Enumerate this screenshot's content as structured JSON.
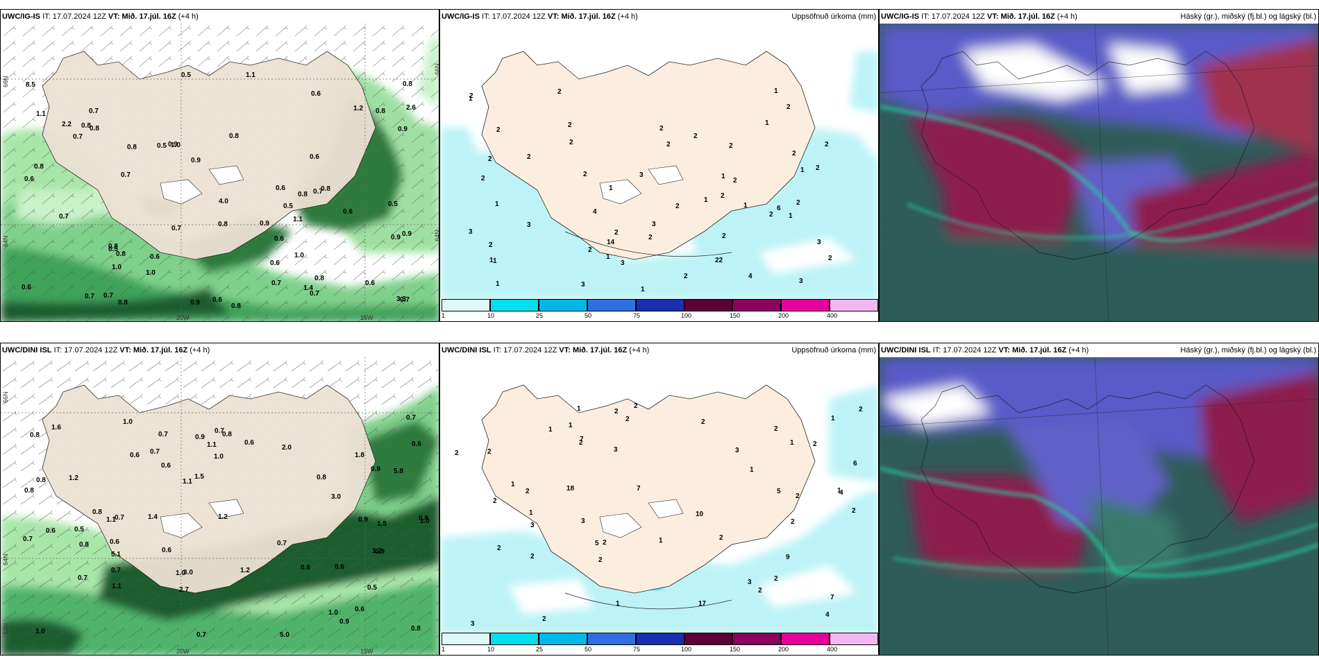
{
  "rows": [
    {
      "model": "UWC/IG-IS",
      "it_label": "IT:",
      "it_value": "17.07.2024 12Z",
      "vt_label": "VT:",
      "vt_value": "Mið. 17.júl. 16Z",
      "lead": "(+4 h)",
      "wind_labels": [
        "0.7",
        "0.7",
        "0.8",
        "0.9",
        "0.6",
        "0.6",
        "0.6",
        "0.6",
        "0.8",
        "0.8",
        "1.0",
        "0.6",
        "0.5",
        "0.6",
        "0.7",
        "0.8",
        "1.1",
        "1.0",
        "0.6",
        "0.7",
        "0.5",
        "0.7",
        "0.8",
        "0.5",
        "0.6",
        "8.5",
        "0.9",
        "0.6",
        "0.7",
        "2.2",
        "3.3",
        "2.6",
        "4.0",
        "1.1",
        "0.5",
        "0.9",
        "0.8",
        "0.7",
        "1.0",
        "0.9",
        "0.8",
        "0.7",
        "0.8",
        "1.4",
        "1.2",
        "0.7",
        "0.8",
        "0.8",
        "0.8",
        "0.6",
        "0.9",
        "0.8",
        "0.9",
        "0.7",
        "0.6",
        "0.8",
        "0.5",
        "1.0",
        "1.1",
        "0.8",
        "0.7",
        "0.8",
        "0.9"
      ],
      "precip_labels": [
        "2",
        "2",
        "1",
        "2",
        "4",
        "3",
        "2",
        "3",
        "2",
        "2",
        "1",
        "2",
        "2",
        "2",
        "1",
        "2",
        "3",
        "2",
        "22",
        "14",
        "6",
        "2",
        "3",
        "1",
        "2",
        "2",
        "2",
        "1",
        "2",
        "3",
        "4",
        "3",
        "2",
        "2",
        "2",
        "2",
        "1",
        "3",
        "3",
        "2",
        "1",
        "1",
        "1",
        "2",
        "1",
        "1",
        "1",
        "1",
        "2",
        "2",
        "2",
        "2",
        "2",
        "2",
        "1",
        "2",
        "1"
      ]
    },
    {
      "model": "UWC/DINI ISL",
      "it_label": "IT:",
      "it_value": "17.07.2024 12Z",
      "vt_label": "VT:",
      "vt_value": "Mið. 17.júl. 16Z",
      "lead": "(+4 h)",
      "wind_labels": [
        "0.6",
        "0.7",
        "0.8",
        "0.9",
        "1.1",
        "0.6",
        "0.6",
        "0.7",
        "0.8",
        "1.0",
        "1.0",
        "0.6",
        "0.7",
        "0.8",
        "1.2",
        "0.6",
        "0.8",
        "0.6",
        "0.7",
        "3.0",
        "0.7",
        "5.8",
        "1.5",
        "5.1",
        "2.7",
        "2.0",
        "1.1",
        "1.6",
        "3.0",
        "5.0",
        "1.4",
        "1.2",
        "0.9",
        "1.5",
        "1.1",
        "1.2",
        "1.0",
        "0.8",
        "0.5",
        "0.7",
        "0.8",
        "0.6",
        "1.0",
        "0.8",
        "0.7",
        "0.6",
        "0.9",
        "1.0",
        "1.2",
        "1.1",
        "0.9",
        "1.0",
        "0.7",
        "0.6",
        "0.9",
        "1.8",
        "0.8",
        "0.7",
        "0.6",
        "0.5",
        "0.8",
        "0.7"
      ],
      "precip_labels": [
        "1",
        "1",
        "1",
        "1",
        "1",
        "1",
        "1",
        "1",
        "1",
        "1",
        "2",
        "2",
        "3",
        "2",
        "2",
        "2",
        "3",
        "2",
        "17",
        "18",
        "7",
        "5",
        "3",
        "2",
        "2",
        "3",
        "7",
        "9",
        "10",
        "6",
        "7",
        "5",
        "3",
        "4",
        "3",
        "2",
        "4",
        "2",
        "2",
        "2",
        "2",
        "2",
        "2",
        "1",
        "2",
        "2",
        "2",
        "2",
        "2",
        "2",
        "2",
        "2"
      ]
    }
  ],
  "precip_title": "Uppsöfnuð úrkoma (mm)",
  "cloud_title": "Háský (gr.), miðský (fj.bl.) og lágský (bl.)",
  "lat_labels": [
    "66N",
    "64N",
    "63N"
  ],
  "lat_labels_b": [
    "66N",
    "64N",
    "63N"
  ],
  "lon_labels": [
    "20W",
    "15W"
  ],
  "colorbar": {
    "ticks": [
      "1",
      "10",
      "25",
      "50",
      "75",
      "100",
      "150",
      "200",
      "400"
    ],
    "colors": [
      "#dff9fb",
      "#00e0f0",
      "#00b8e8",
      "#2f6fe0",
      "#1a2fb0",
      "#5c0035",
      "#8c0060",
      "#e8009a",
      "#f4b8f0"
    ]
  }
}
